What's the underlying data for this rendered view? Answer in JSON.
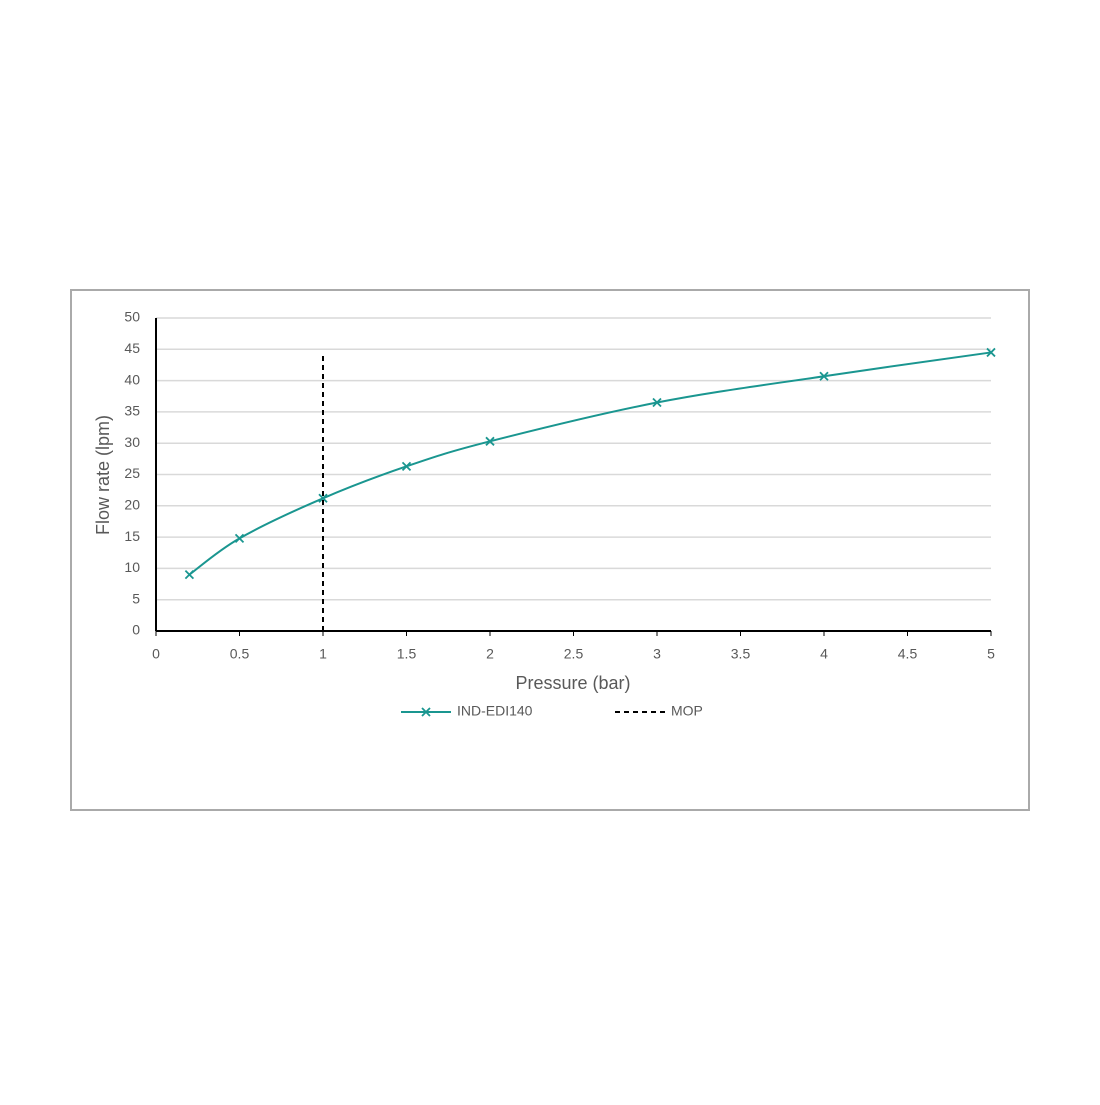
{
  "chart_data": {
    "type": "line",
    "x_label": "Pressure (bar)",
    "y_label": "Flow rate (lpm)",
    "series": [
      {
        "name": "IND-EDI140",
        "color": "#1a9690",
        "marker": "x",
        "smooth": true,
        "x": [
          0.2,
          0.5,
          1,
          1.5,
          2,
          3,
          4,
          5
        ],
        "values": [
          9,
          14.8,
          21.2,
          26.3,
          30.3,
          36.5,
          40.7,
          44.5
        ]
      },
      {
        "name": "MOP",
        "color": "#000000",
        "dashed": true,
        "x": [
          1,
          1
        ],
        "values": [
          0,
          44.5
        ]
      }
    ],
    "xlim": [
      0,
      5
    ],
    "xticks": [
      0,
      0.5,
      1,
      1.5,
      2,
      2.5,
      3,
      3.5,
      4,
      4.5,
      5
    ],
    "ylim": [
      0,
      50
    ],
    "yticks": [
      0,
      5,
      10,
      15,
      20,
      25,
      30,
      35,
      40,
      45,
      50
    ],
    "grid": true,
    "legend": "bottom"
  }
}
